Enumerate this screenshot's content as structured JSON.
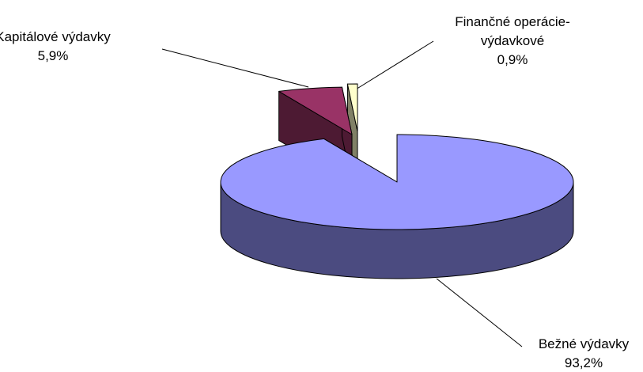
{
  "chart_data": {
    "type": "pie",
    "style": "3d-exploded",
    "title": "",
    "legend": "none",
    "slices": [
      {
        "label_lines": [
          "Bežné výdavky"
        ],
        "value_label": "93,2%",
        "value": 93.2,
        "top_color": "#9999ff",
        "side_color": "#4b4b80"
      },
      {
        "label_lines": [
          "Kapitálové výdavky"
        ],
        "value_label": "5,9%",
        "value": 5.9,
        "top_color": "#993366",
        "side_color": "#4d1a33"
      },
      {
        "label_lines": [
          "Finančné operácie-",
          "výdavkové"
        ],
        "value_label": "0,9%",
        "value": 0.9,
        "top_color": "#ffffcc",
        "side_color": "#808066"
      }
    ]
  }
}
